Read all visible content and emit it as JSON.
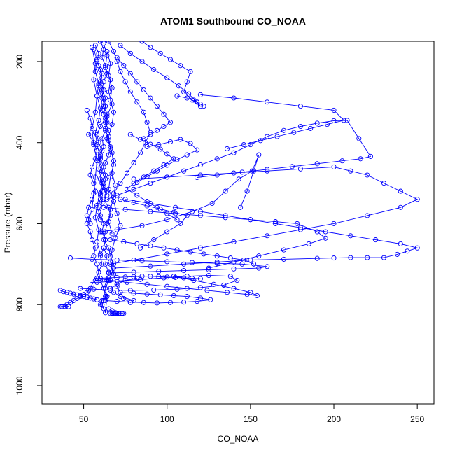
{
  "chart_data": {
    "type": "line",
    "title": "ATOM1 Southbound CO_NOAA",
    "xlabel": "CO_NOAA",
    "ylabel": "Pressure (mbar)",
    "xlim": [
      25,
      260
    ],
    "ylim": [
      1045,
      150
    ],
    "y_reversed": true,
    "x_ticks": [
      50,
      100,
      150,
      200,
      250
    ],
    "y_ticks": [
      200,
      400,
      600,
      800,
      1000
    ],
    "grid": false,
    "legend": "none",
    "color": "#0000ff",
    "marker": "open-circle",
    "series": [
      {
        "x": [
          57,
          59,
          58,
          60,
          61,
          59,
          60,
          62,
          61,
          63,
          60,
          58,
          59,
          61,
          60,
          62,
          63,
          61,
          64,
          62,
          65,
          66,
          64,
          63,
          62,
          65,
          66,
          68,
          67,
          65,
          63,
          64,
          62,
          61,
          63,
          64,
          62,
          60,
          59,
          61,
          60,
          62,
          63,
          61,
          62,
          60,
          58,
          60,
          61,
          62
        ],
        "y": [
          160,
          180,
          200,
          220,
          240,
          260,
          280,
          300,
          320,
          340,
          360,
          380,
          400,
          420,
          440,
          460,
          480,
          500,
          520,
          540,
          560,
          580,
          600,
          620,
          640,
          660,
          680,
          700,
          720,
          740,
          760,
          780,
          790,
          800,
          820,
          780,
          760,
          740,
          720,
          700,
          680,
          660,
          640,
          620,
          600,
          580,
          560,
          540,
          520,
          500
        ]
      },
      {
        "x": [
          62,
          64,
          63,
          66,
          65,
          67,
          64,
          63,
          65,
          67,
          68,
          66,
          65,
          68,
          70,
          72,
          69,
          67,
          66,
          68,
          70,
          74,
          78,
          80,
          72,
          68,
          66,
          70,
          75,
          82
        ],
        "y": [
          155,
          185,
          215,
          245,
          275,
          305,
          335,
          365,
          395,
          425,
          455,
          485,
          515,
          545,
          575,
          605,
          635,
          665,
          695,
          725,
          755,
          785,
          795,
          790,
          780,
          770,
          760,
          750,
          740,
          735
        ]
      },
      {
        "x": [
          55,
          57,
          56,
          58,
          57,
          55,
          56,
          58,
          57,
          56,
          55,
          53,
          52,
          54,
          55,
          57,
          56,
          58,
          59,
          57,
          55,
          54,
          53,
          52,
          50,
          48,
          46,
          44,
          42,
          40,
          38,
          36,
          37,
          39,
          41
        ],
        "y": [
          165,
          205,
          245,
          285,
          325,
          365,
          405,
          445,
          485,
          525,
          565,
          590,
          600,
          620,
          640,
          660,
          680,
          700,
          720,
          740,
          750,
          760,
          765,
          770,
          775,
          780,
          785,
          790,
          795,
          800,
          805,
          805,
          805,
          805,
          805
        ]
      },
      {
        "x": [
          60,
          62,
          61,
          63,
          64,
          62,
          61,
          63,
          62,
          64,
          63,
          65,
          64,
          66,
          65,
          63,
          61,
          60,
          62,
          64
        ],
        "y": [
          150,
          170,
          190,
          210,
          230,
          250,
          270,
          290,
          310,
          330,
          350,
          370,
          390,
          410,
          430,
          450,
          470,
          490,
          510,
          530
        ]
      },
      {
        "x": [
          65,
          68,
          70,
          72,
          75,
          78,
          82,
          86,
          88,
          90,
          87,
          84,
          80,
          76,
          72,
          68
        ],
        "y": [
          150,
          175,
          200,
          225,
          250,
          275,
          300,
          325,
          350,
          375,
          400,
          425,
          450,
          475,
          500,
          525
        ]
      },
      {
        "x": [
          85,
          90,
          96,
          102,
          108,
          114,
          112,
          110,
          115,
          120,
          118,
          112,
          106
        ],
        "y": [
          150,
          165,
          180,
          195,
          210,
          225,
          250,
          275,
          295,
          310,
          300,
          290,
          285
        ]
      },
      {
        "x": [
          72,
          78,
          85,
          92,
          100,
          107,
          113,
          118,
          122,
          120,
          116
        ],
        "y": [
          160,
          180,
          200,
          220,
          240,
          260,
          280,
          300,
          310,
          305,
          295
        ]
      },
      {
        "x": [
          64,
          70,
          80,
          90,
          100,
          110,
          120,
          130,
          140,
          150,
          160,
          170,
          180,
          190,
          200,
          208,
          215,
          222,
          216,
          205,
          190,
          175,
          160,
          145,
          130,
          118
        ],
        "y": [
          540,
          530,
          515,
          500,
          485,
          470,
          455,
          440,
          425,
          405,
          385,
          370,
          360,
          352,
          346,
          345,
          390,
          434,
          440,
          445,
          452,
          459,
          466,
          473,
          480,
          486
        ]
      },
      {
        "x": [
          66,
          80,
          100,
          120,
          140,
          160,
          180,
          200,
          220,
          240,
          250,
          240,
          230,
          220,
          210,
          200,
          180,
          160,
          140,
          120,
          100,
          80
        ],
        "y": [
          700,
          690,
          675,
          660,
          645,
          630,
          615,
          600,
          580,
          560,
          540,
          520,
          500,
          480,
          470,
          460,
          465,
          470,
          475,
          480,
          485,
          490
        ]
      },
      {
        "x": [
          68,
          90,
          110,
          130,
          150,
          170,
          190,
          200,
          210,
          220,
          230,
          238,
          244,
          250,
          240,
          225,
          210,
          195,
          180,
          165,
          150,
          135,
          120,
          105,
          90,
          75
        ],
        "y": [
          710,
          705,
          700,
          695,
          690,
          688,
          686,
          685,
          684,
          684,
          684,
          676,
          668,
          660,
          650,
          640,
          630,
          620,
          610,
          600,
          590,
          580,
          570,
          560,
          550,
          540
        ]
      },
      {
        "x": [
          62,
          75,
          90,
          105,
          120,
          135,
          150,
          165,
          178,
          190,
          195,
          185,
          170,
          155,
          140,
          125
        ],
        "y": [
          560,
          565,
          570,
          575,
          580,
          585,
          590,
          595,
          600,
          620,
          636,
          650,
          665,
          680,
          695,
          710
        ]
      },
      {
        "x": [
          60,
          70,
          85,
          100,
          115,
          127,
          135,
          143,
          151,
          155,
          152,
          148,
          144
        ],
        "y": [
          620,
          615,
          605,
          590,
          570,
          550,
          520,
          490,
          470,
          430,
          470,
          520,
          560
        ]
      },
      {
        "x": [
          58,
          66,
          76,
          88,
          100,
          112,
          124,
          136,
          148,
          154,
          150,
          140,
          128,
          116,
          104
        ],
        "y": [
          735,
          740,
          745,
          750,
          755,
          760,
          765,
          770,
          775,
          778,
          770,
          760,
          750,
          740,
          730
        ]
      },
      {
        "x": [
          48,
          56,
          66,
          78,
          92,
          106,
          120,
          134,
          142,
          138,
          125,
          112,
          98,
          84,
          70,
          58
        ],
        "y": [
          760,
          762,
          764,
          765,
          764,
          762,
          758,
          752,
          740,
          730,
          728,
          730,
          734,
          738,
          742,
          745
        ]
      },
      {
        "x": [
          42,
          55,
          70,
          85,
          100,
          115,
          130,
          145,
          160,
          155,
          140,
          125,
          110,
          95,
          80,
          65
        ],
        "y": [
          685,
          688,
          690,
          692,
          694,
          696,
          698,
          700,
          706,
          710,
          712,
          714,
          716,
          718,
          720,
          722
        ]
      },
      {
        "x": [
          63,
          70,
          78,
          86,
          94,
          102,
          110,
          118,
          126,
          120,
          112,
          104,
          96,
          88,
          80,
          72
        ],
        "y": [
          790,
          792,
          794,
          795,
          796,
          795,
          794,
          792,
          788,
          784,
          780,
          778,
          776,
          774,
          772,
          770
        ]
      },
      {
        "x": [
          65,
          67,
          69,
          71,
          73,
          72,
          70,
          68,
          66,
          67,
          69,
          71,
          73,
          74
        ],
        "y": [
          810,
          815,
          820,
          822,
          822,
          822,
          822,
          822,
          822,
          822,
          822,
          822,
          822,
          822
        ]
      },
      {
        "x": [
          78,
          84,
          90,
          96,
          100,
          104,
          98,
          92,
          86,
          80,
          76,
          82,
          88,
          94,
          100,
          106
        ],
        "y": [
          380,
          392,
          404,
          416,
          428,
          440,
          455,
          470,
          485,
          500,
          515,
          530,
          545,
          560,
          575,
          590
        ]
      },
      {
        "x": [
          88,
          95,
          102,
          108,
          114,
          118,
          112,
          106,
          100,
          94,
          88,
          82
        ],
        "y": [
          410,
          405,
          398,
          392,
          402,
          418,
          430,
          442,
          456,
          470,
          484,
          498
        ]
      },
      {
        "x": [
          72,
          80,
          88,
          96,
          104,
          112,
          108,
          100,
          92,
          84
        ],
        "y": [
          540,
          548,
          556,
          564,
          572,
          580,
          600,
          620,
          640,
          660
        ]
      },
      {
        "x": [
          66,
          74,
          82,
          90,
          98,
          106,
          114,
          122,
          130,
          138,
          146,
          152
        ],
        "y": [
          640,
          645,
          650,
          655,
          660,
          665,
          670,
          675,
          680,
          685,
          690,
          700
        ]
      },
      {
        "x": [
          59,
          61,
          60,
          62,
          61,
          63,
          62,
          64,
          63,
          61,
          62,
          60,
          59,
          61,
          63,
          62,
          60,
          61,
          59,
          60
        ],
        "y": [
          210,
          230,
          250,
          270,
          290,
          310,
          330,
          350,
          370,
          390,
          410,
          430,
          450,
          470,
          490,
          510,
          530,
          550,
          570,
          590
        ]
      },
      {
        "x": [
          56,
          58,
          57,
          59,
          58,
          60,
          59,
          57,
          58,
          60,
          59,
          61,
          60,
          58,
          57,
          59,
          58,
          60
        ],
        "y": [
          170,
          195,
          225,
          255,
          285,
          315,
          345,
          375,
          405,
          435,
          465,
          495,
          525,
          555,
          585,
          615,
          645,
          675
        ]
      },
      {
        "x": [
          64,
          66,
          65,
          67,
          66,
          68,
          67,
          65,
          66,
          68,
          67,
          69,
          68,
          66,
          65,
          67
        ],
        "y": [
          175,
          205,
          235,
          265,
          295,
          325,
          355,
          385,
          415,
          445,
          475,
          505,
          535,
          565,
          595,
          625
        ]
      },
      {
        "x": [
          52,
          54,
          55,
          53,
          56,
          58,
          57,
          55,
          54,
          56,
          57,
          55,
          53,
          52,
          54
        ],
        "y": [
          320,
          340,
          360,
          380,
          400,
          420,
          440,
          460,
          480,
          500,
          520,
          540,
          560,
          580,
          600
        ]
      },
      {
        "x": [
          70,
          74,
          78,
          82,
          86,
          90,
          94,
          98,
          102,
          98,
          94,
          90,
          86
        ],
        "y": [
          190,
          210,
          230,
          250,
          270,
          290,
          310,
          330,
          350,
          360,
          370,
          380,
          390
        ]
      },
      {
        "x": [
          120,
          140,
          160,
          180,
          200,
          206,
          196,
          186,
          176,
          166,
          156,
          146,
          136
        ],
        "y": [
          282,
          290,
          300,
          310,
          320,
          345,
          355,
          365,
          375,
          385,
          395,
          405,
          415
        ]
      },
      {
        "x": [
          61,
          63,
          62,
          64,
          63,
          65,
          64,
          62,
          63,
          61,
          60,
          62
        ],
        "y": [
          620,
          640,
          660,
          680,
          700,
          720,
          740,
          760,
          780,
          790,
          800,
          810
        ]
      },
      {
        "x": [
          36,
          38,
          40,
          42,
          44,
          46,
          48,
          50,
          52,
          54,
          56,
          58
        ],
        "y": [
          765,
          768,
          770,
          772,
          774,
          776,
          778,
          780,
          782,
          784,
          786,
          788
        ]
      },
      {
        "x": [
          60,
          65,
          70,
          75,
          80,
          85,
          90,
          95,
          100,
          105,
          110,
          115,
          120
        ],
        "y": [
          735,
          734,
          733,
          732,
          731,
          730,
          730,
          731,
          732,
          733,
          734,
          735,
          736
        ]
      }
    ]
  }
}
